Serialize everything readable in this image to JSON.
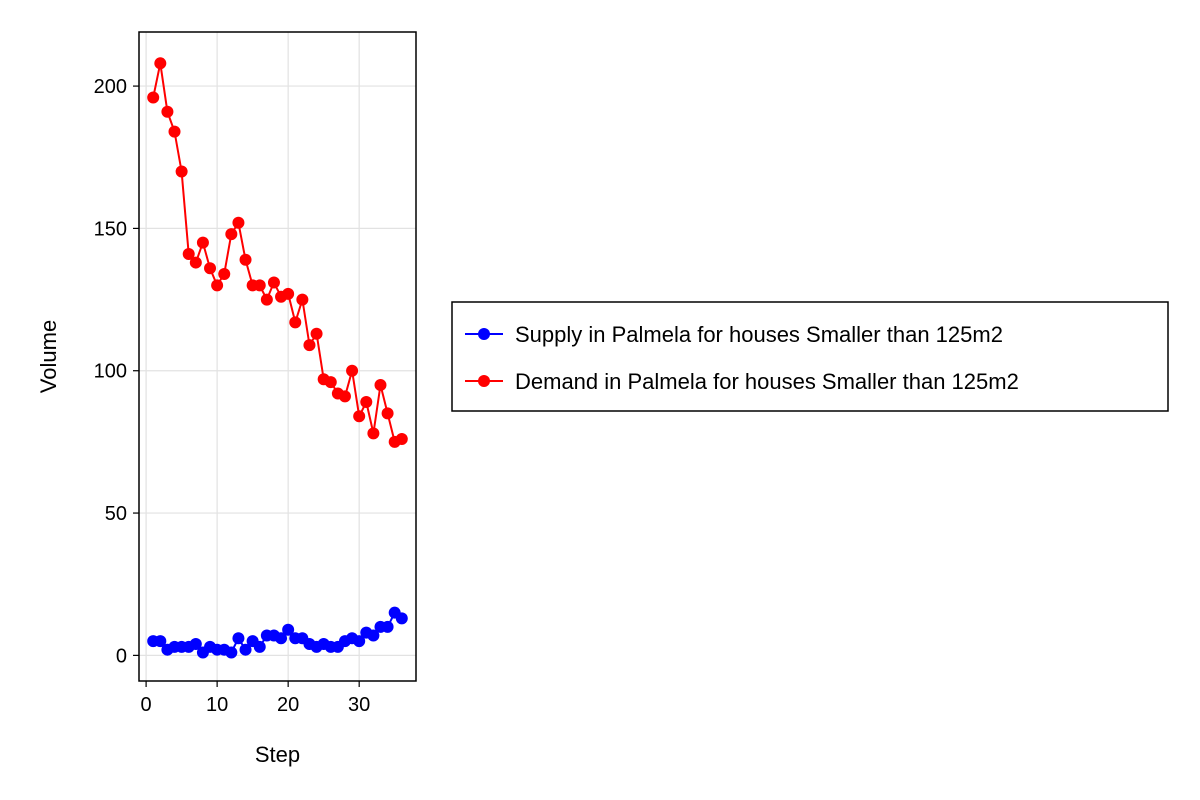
{
  "chart_data": {
    "type": "line",
    "title": "",
    "xlabel": "Step",
    "ylabel": "Volume",
    "xlim": [
      -1,
      38
    ],
    "ylim": [
      -9,
      219
    ],
    "xticks": [
      0,
      10,
      20,
      30
    ],
    "yticks": [
      0,
      50,
      100,
      150,
      200
    ],
    "grid": true,
    "legend_position": "right",
    "series": [
      {
        "name": "Supply in Palmela for houses Smaller than 125m2",
        "color": "#0000ff",
        "x": [
          1,
          2,
          3,
          4,
          5,
          6,
          7,
          8,
          9,
          10,
          11,
          12,
          13,
          14,
          15,
          16,
          17,
          18,
          19,
          20,
          21,
          22,
          23,
          24,
          25,
          26,
          27,
          28,
          29,
          30,
          31,
          32,
          33,
          34,
          35,
          36
        ],
        "values": [
          5,
          5,
          2,
          3,
          3,
          3,
          4,
          1,
          3,
          2,
          2,
          1,
          6,
          2,
          5,
          3,
          7,
          7,
          6,
          9,
          6,
          6,
          4,
          3,
          4,
          3,
          3,
          5,
          6,
          5,
          8,
          7,
          10,
          10,
          15,
          13
        ]
      },
      {
        "name": "Demand in Palmela for houses Smaller than 125m2",
        "color": "#ff0000",
        "x": [
          1,
          2,
          3,
          4,
          5,
          6,
          7,
          8,
          9,
          10,
          11,
          12,
          13,
          14,
          15,
          16,
          17,
          18,
          19,
          20,
          21,
          22,
          23,
          24,
          25,
          26,
          27,
          28,
          29,
          30,
          31,
          32,
          33,
          34,
          35,
          36
        ],
        "values": [
          196,
          208,
          191,
          184,
          170,
          141,
          138,
          145,
          136,
          130,
          134,
          148,
          152,
          139,
          130,
          130,
          125,
          131,
          126,
          127,
          117,
          125,
          109,
          113,
          97,
          96,
          92,
          91,
          100,
          84,
          89,
          78,
          95,
          85,
          75,
          76
        ]
      }
    ]
  }
}
